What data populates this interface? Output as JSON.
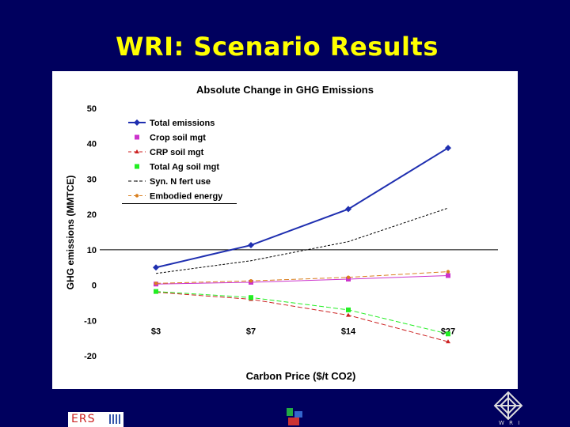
{
  "slide": {
    "title": "WRI: Scenario Results",
    "logos": {
      "left": "ers-logo-icon",
      "center": "university-logo-icon",
      "right": "wri-logo-icon",
      "right_text": "W R I"
    }
  },
  "chart_data": {
    "type": "line",
    "title": "Absolute Change in GHG Emissions",
    "xlabel": "Carbon Price ($/t CO2)",
    "ylabel": "GHG emissions (MMTCE)",
    "ylim": [
      -20,
      50
    ],
    "yticks": [
      -20,
      -10,
      0,
      10,
      20,
      30,
      40,
      50
    ],
    "categories": [
      "$3",
      "$7",
      "$14",
      "$27"
    ],
    "reference_line_y": 10,
    "grid": false,
    "legend_position": "top-left",
    "series": [
      {
        "name": "Total emissions",
        "values": [
          5,
          11.3,
          21.5,
          38.8
        ],
        "color": "#1f2fb0",
        "marker": "diamond",
        "dash": "solid"
      },
      {
        "name": "Crop soil mgt",
        "values": [
          0.3,
          0.8,
          1.7,
          2.7
        ],
        "color": "#cc33cc",
        "marker": "square",
        "dash": "solid"
      },
      {
        "name": "CRP soil mgt",
        "values": [
          -2,
          -4,
          -8.5,
          -16
        ],
        "color": "#cc2222",
        "marker": "triangle",
        "dash": "dashed"
      },
      {
        "name": "Total Ag soil mgt",
        "values": [
          -1.8,
          -3.5,
          -7,
          -13.8
        ],
        "color": "#22ee22",
        "marker": "square",
        "dash": "dashed"
      },
      {
        "name": "Syn. N fert use",
        "values": [
          3.3,
          6.9,
          12.3,
          21.8
        ],
        "color": "#000000",
        "marker": "none",
        "dash": "dashed"
      },
      {
        "name": "Embodied energy",
        "values": [
          0.5,
          1.2,
          2.2,
          3.8
        ],
        "color": "#d98020",
        "marker": "circle",
        "dash": "dashed"
      }
    ]
  }
}
